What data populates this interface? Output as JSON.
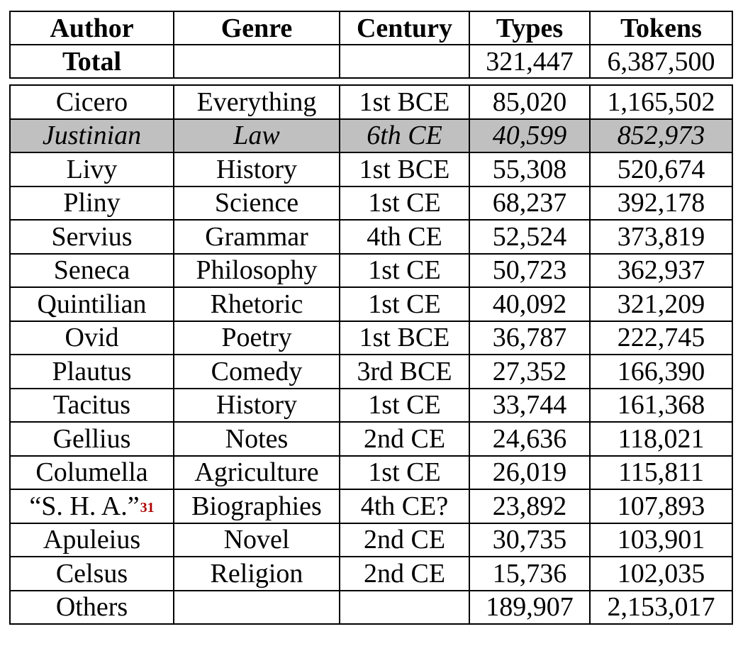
{
  "header": {
    "columns": [
      "Author",
      "Genre",
      "Century",
      "Types",
      "Tokens"
    ]
  },
  "total": {
    "label": "Total",
    "genre": "",
    "century": "",
    "types": "321,447",
    "tokens": "6,387,500"
  },
  "rows": [
    {
      "author": "Cicero",
      "genre": "Everything",
      "century": "1st BCE",
      "types": "85,020",
      "tokens": "1,165,502"
    },
    {
      "author": "Justinian",
      "genre": "Law",
      "century": "6th CE",
      "types": "40,599",
      "tokens": "852,973",
      "highlighted": true
    },
    {
      "author": "Livy",
      "genre": "History",
      "century": "1st BCE",
      "types": "55,308",
      "tokens": "520,674"
    },
    {
      "author": "Pliny",
      "genre": "Science",
      "century": "1st CE",
      "types": "68,237",
      "tokens": "392,178"
    },
    {
      "author": "Servius",
      "genre": "Grammar",
      "century": "4th CE",
      "types": "52,524",
      "tokens": "373,819"
    },
    {
      "author": "Seneca",
      "genre": "Philosophy",
      "century": "1st CE",
      "types": "50,723",
      "tokens": "362,937"
    },
    {
      "author": "Quintilian",
      "genre": "Rhetoric",
      "century": "1st CE",
      "types": "40,092",
      "tokens": "321,209"
    },
    {
      "author": "Ovid",
      "genre": "Poetry",
      "century": "1st BCE",
      "types": "36,787",
      "tokens": "222,745"
    },
    {
      "author": "Plautus",
      "genre": "Comedy",
      "century": "3rd BCE",
      "types": "27,352",
      "tokens": "166,390"
    },
    {
      "author": "Tacitus",
      "genre": "History",
      "century": "1st CE",
      "types": "33,744",
      "tokens": "161,368"
    },
    {
      "author": "Gellius",
      "genre": "Notes",
      "century": "2nd CE",
      "types": "24,636",
      "tokens": "118,021"
    },
    {
      "author": "Columella",
      "genre": "Agriculture",
      "century": "1st CE",
      "types": "26,019",
      "tokens": "115,811"
    },
    {
      "author": "“S. H. A.”",
      "footnote": "31",
      "genre": "Biographies",
      "century": "4th CE?",
      "types": "23,892",
      "tokens": "107,893"
    },
    {
      "author": "Apuleius",
      "genre": "Novel",
      "century": "2nd CE",
      "types": "30,735",
      "tokens": "103,901"
    },
    {
      "author": "Celsus",
      "genre": "Religion",
      "century": "2nd CE",
      "types": "15,736",
      "tokens": "102,035"
    },
    {
      "author": "Others",
      "genre": "",
      "century": "",
      "types": "189,907",
      "tokens": "2,153,017"
    }
  ]
}
